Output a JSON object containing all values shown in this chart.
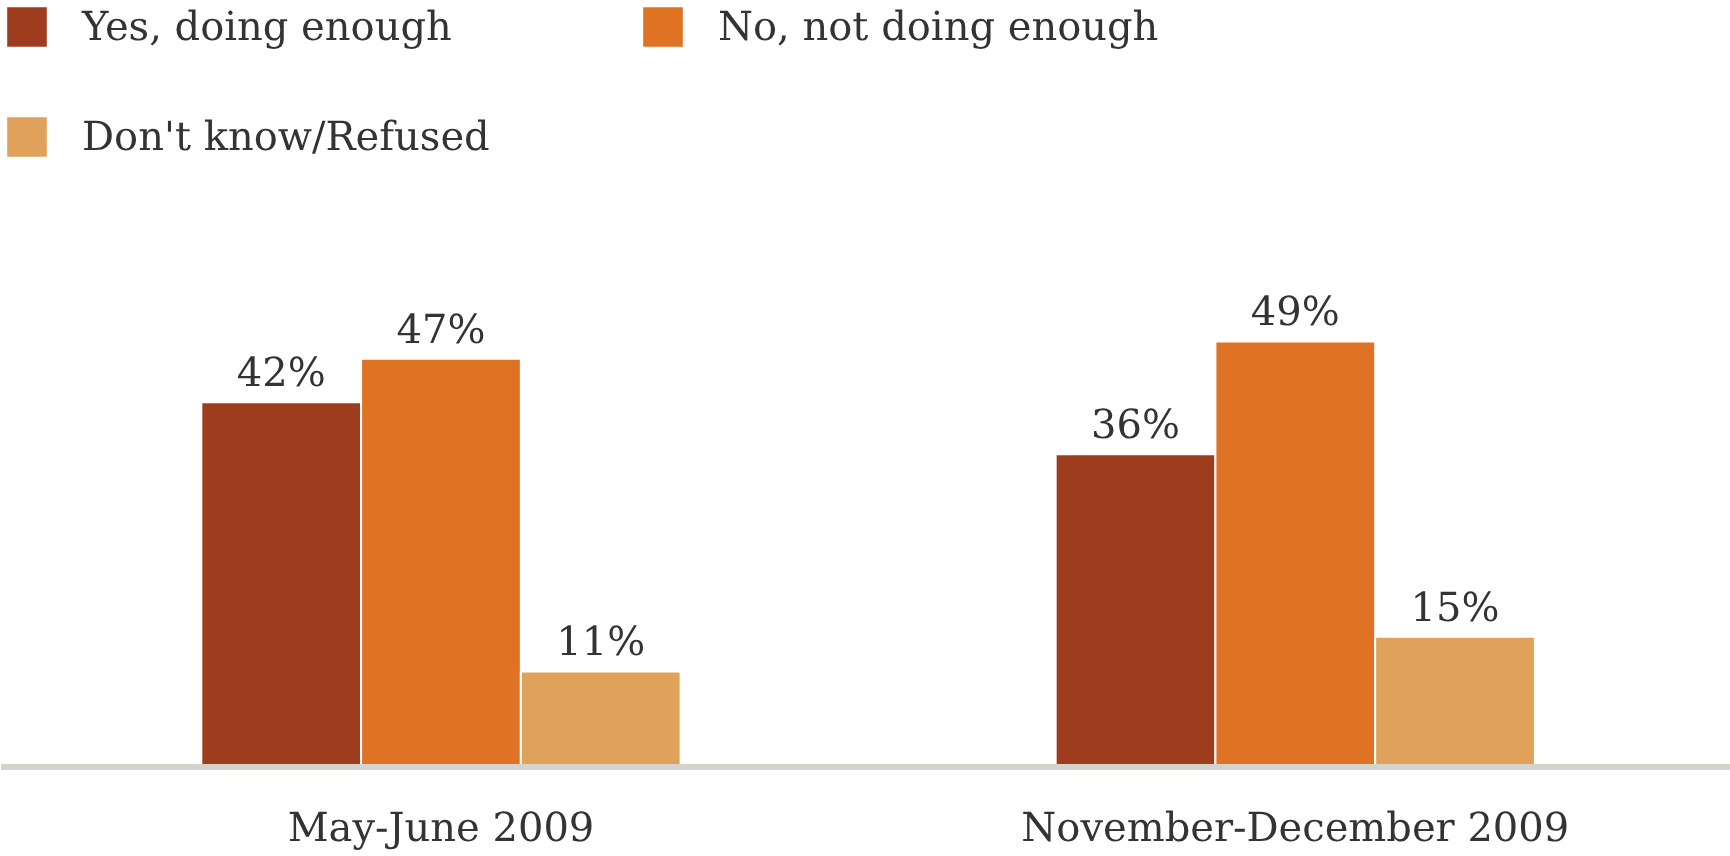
{
  "chart_data": {
    "type": "bar",
    "categories": [
      "May-June 2009",
      "November-December 2009"
    ],
    "series": [
      {
        "name": "Yes, doing enough",
        "color": "#9e3c1e",
        "values": [
          42,
          36
        ],
        "value_labels": [
          "42%",
          "36%"
        ]
      },
      {
        "name": "No, not doing enough",
        "color": "#e07224",
        "values": [
          47,
          49
        ],
        "value_labels": [
          "47%",
          "49%"
        ]
      },
      {
        "name": "Don't know/Refused",
        "color": "#e0a15a",
        "values": [
          11,
          15
        ],
        "value_labels": [
          "11%",
          "15%"
        ]
      }
    ],
    "legend": "top left"
  }
}
